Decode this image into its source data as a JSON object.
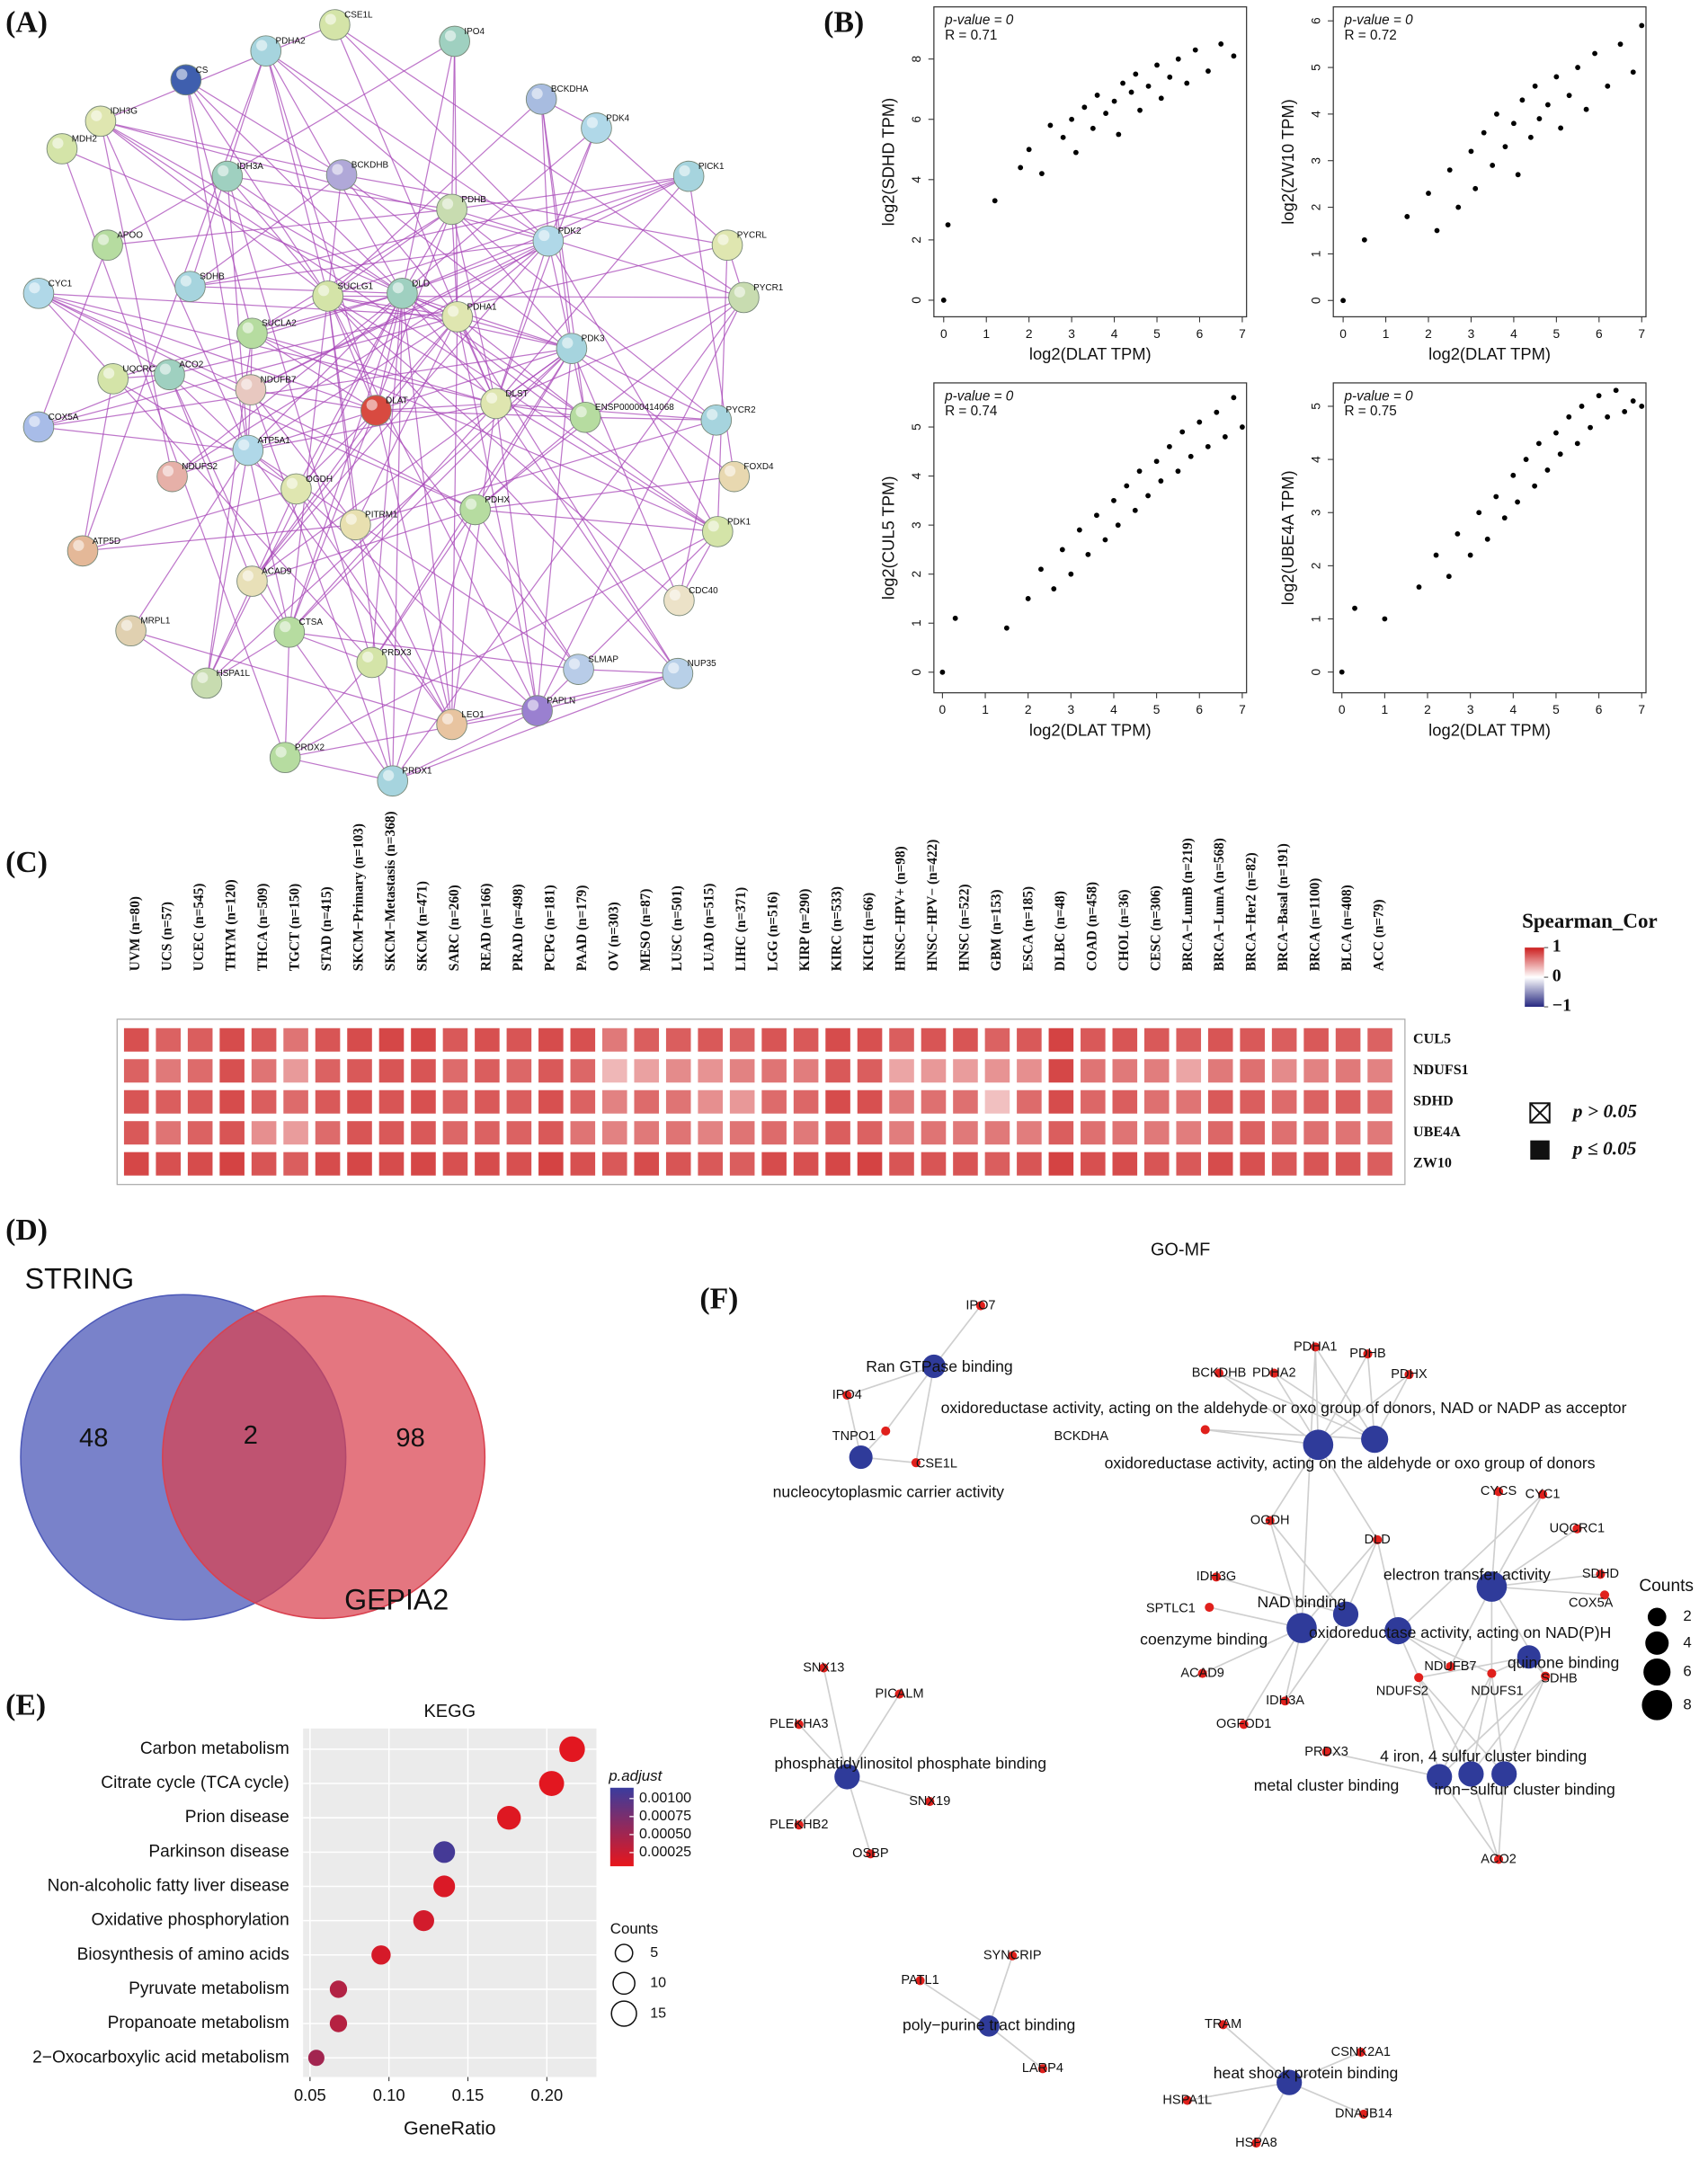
{
  "chart_data": [
    {
      "type": "network",
      "label": "(A)",
      "edge_color": "#a848b8",
      "nodes": [
        "CS",
        "PDHA2",
        "CSE1L",
        "IPO4",
        "BCKDHA",
        "PDK4",
        "IDH3G",
        "BCKDHB",
        "PICK1",
        "MDH2",
        "IDH3A",
        "PDHB",
        "PDK2",
        "PYCRL",
        "APOO",
        "SDHB",
        "SUCLG1",
        "DLD",
        "PYCR1",
        "CYC1",
        "PDHA1",
        "SUCLA2",
        "PDK3",
        "UQCRC1",
        "ACO2",
        "NDUFB7",
        "DLAT",
        "DLST",
        "ENSP00000414068",
        "PYCR2",
        "COX5A",
        "FOXD4",
        "NDUFS2",
        "ATP5A1",
        "OGDH",
        "PDHX",
        "PITRM1",
        "PDK1",
        "ATP5D",
        "ACAD9",
        "CDC40",
        "MRPL1",
        "CTSA",
        "NUP35",
        "PRDX3",
        "SLMAP",
        "HSPA1L",
        "PAPLN",
        "LEO1",
        "PRDX2",
        "PRDX1"
      ]
    },
    {
      "type": "scatter",
      "label": "(B)",
      "annotations": [
        "p-value = 0",
        "R = 0.71"
      ],
      "xlabel": "log2(DLAT TPM)",
      "ylabel": "log2(SDHD TPM)",
      "color": "#000000",
      "x": [
        0,
        0.1,
        1.2,
        1.8,
        2.0,
        2.3,
        2.5,
        2.8,
        3.0,
        3.1,
        3.3,
        3.5,
        3.6,
        3.8,
        4.0,
        4.1,
        4.2,
        4.4,
        4.5,
        4.6,
        4.8,
        5.0,
        5.1,
        5.3,
        5.5,
        5.7,
        5.9,
        6.2,
        6.5,
        6.8
      ],
      "y": [
        0,
        2.5,
        3.3,
        4.4,
        5.0,
        4.2,
        5.8,
        5.4,
        6.0,
        4.9,
        6.4,
        5.7,
        6.8,
        6.2,
        6.6,
        5.5,
        7.2,
        6.9,
        7.5,
        6.3,
        7.1,
        7.8,
        6.7,
        7.4,
        8.0,
        7.2,
        8.3,
        7.6,
        8.5,
        8.1
      ],
      "xlim": [
        -0.23,
        7.1
      ],
      "ylim": [
        -0.55,
        9.73
      ],
      "xticks": [
        0,
        1,
        2,
        3,
        4,
        5,
        6,
        7
      ],
      "yticks": [
        0,
        2,
        4,
        6,
        8
      ]
    },
    {
      "type": "scatter",
      "annotations": [
        "p-value = 0",
        "R = 0.72"
      ],
      "xlabel": "log2(DLAT TPM)",
      "ylabel": "log2(ZW10 TPM)",
      "color": "#000000",
      "x": [
        0,
        0.5,
        1.5,
        2.0,
        2.2,
        2.5,
        2.7,
        3.0,
        3.1,
        3.3,
        3.5,
        3.6,
        3.8,
        4.0,
        4.1,
        4.2,
        4.4,
        4.5,
        4.6,
        4.8,
        5.0,
        5.1,
        5.3,
        5.5,
        5.7,
        5.9,
        6.2,
        6.5,
        6.8,
        7.0
      ],
      "y": [
        0,
        1.3,
        1.8,
        2.3,
        1.5,
        2.8,
        2.0,
        3.2,
        2.4,
        3.6,
        2.9,
        4.0,
        3.3,
        3.8,
        2.7,
        4.3,
        3.5,
        4.6,
        3.9,
        4.2,
        4.8,
        3.7,
        4.4,
        5.0,
        4.1,
        5.3,
        4.6,
        5.5,
        4.9,
        5.9
      ],
      "xlim": [
        -0.23,
        7.1
      ],
      "ylim": [
        -0.35,
        6.3
      ],
      "xticks": [
        0,
        1,
        2,
        3,
        4,
        5,
        6,
        7
      ],
      "yticks": [
        0,
        1,
        2,
        3,
        4,
        5,
        6
      ]
    },
    {
      "type": "scatter",
      "annotations": [
        "p-value = 0",
        "R = 0.74"
      ],
      "xlabel": "log2(DLAT TPM)",
      "ylabel": "log2(CUL5 TPM)",
      "color": "#000000",
      "x": [
        0,
        0.3,
        1.5,
        2.0,
        2.3,
        2.6,
        2.8,
        3.0,
        3.2,
        3.4,
        3.6,
        3.8,
        4.0,
        4.1,
        4.3,
        4.5,
        4.6,
        4.8,
        5.0,
        5.1,
        5.3,
        5.5,
        5.6,
        5.8,
        6.0,
        6.2,
        6.4,
        6.6,
        6.8,
        7.0
      ],
      "y": [
        0,
        1.1,
        0.9,
        1.5,
        2.1,
        1.7,
        2.5,
        2.0,
        2.9,
        2.4,
        3.2,
        2.7,
        3.5,
        3.0,
        3.8,
        3.3,
        4.1,
        3.6,
        4.3,
        3.9,
        4.6,
        4.1,
        4.9,
        4.4,
        5.1,
        4.6,
        5.3,
        4.8,
        5.6,
        5.0
      ],
      "xlim": [
        -0.2,
        7.1
      ],
      "ylim": [
        -0.42,
        5.9
      ],
      "xticks": [
        0,
        1,
        2,
        3,
        4,
        5,
        6,
        7
      ],
      "yticks": [
        0,
        1,
        2,
        3,
        4,
        5
      ]
    },
    {
      "type": "scatter",
      "annotations": [
        "p-value = 0",
        "R = 0.75"
      ],
      "xlabel": "log2(DLAT TPM)",
      "ylabel": "log2(UBE4A TPM)",
      "color": "#000000",
      "x": [
        0,
        0.3,
        1.0,
        1.8,
        2.2,
        2.5,
        2.7,
        3.0,
        3.2,
        3.4,
        3.6,
        3.8,
        4.0,
        4.1,
        4.3,
        4.5,
        4.6,
        4.8,
        5.0,
        5.1,
        5.3,
        5.5,
        5.6,
        5.8,
        6.0,
        6.2,
        6.4,
        6.6,
        6.8,
        7.0
      ],
      "y": [
        0,
        1.2,
        1.0,
        1.6,
        2.2,
        1.8,
        2.6,
        2.2,
        3.0,
        2.5,
        3.3,
        2.9,
        3.7,
        3.2,
        4.0,
        3.5,
        4.3,
        3.8,
        4.5,
        4.1,
        4.8,
        4.3,
        5.0,
        4.6,
        5.2,
        4.8,
        5.3,
        4.9,
        5.1,
        5.0
      ],
      "xlim": [
        -0.2,
        7.1
      ],
      "ylim": [
        -0.39,
        5.44
      ],
      "xticks": [
        0,
        1,
        2,
        3,
        4,
        5,
        6,
        7
      ],
      "yticks": [
        0,
        1,
        2,
        3,
        4,
        5
      ]
    },
    {
      "type": "heatmap",
      "label": "(C)",
      "legend_title": "Spearman_Cor",
      "clim": [
        -1,
        1
      ],
      "cticks": [
        1,
        0,
        {
          "value": -1,
          "label": "−1"
        }
      ],
      "sig_legend": [
        "p > 0.05",
        "p ≤ 0.05"
      ],
      "columns": [
        "UVM (n=80)",
        "UCS (n=57)",
        "UCEC (n=545)",
        "THYM (n=120)",
        "THCA (n=509)",
        "TGCT (n=150)",
        "STAD (n=415)",
        "SKCM−Primary (n=103)",
        "SKCM−Metastasis (n=368)",
        "SKCM (n=471)",
        "SARC (n=260)",
        "READ (n=166)",
        "PRAD (n=498)",
        "PCPG (n=181)",
        "PAAD (n=179)",
        "OV (n=303)",
        "MESO (n=87)",
        "LUSC (n=501)",
        "LUAD (n=515)",
        "LIHC (n=371)",
        "LGG (n=516)",
        "KIRP (n=290)",
        "KIRC (n=533)",
        "KICH (n=66)",
        "HNSC−HPV+ (n=98)",
        "HNSC−HPV− (n=422)",
        "HNSC (n=522)",
        "GBM (n=153)",
        "ESCA (n=185)",
        "DLBC (n=48)",
        "COAD (n=458)",
        "CHOL (n=36)",
        "CESC (n=306)",
        "BRCA−LumB (n=219)",
        "BRCA−LumA (n=568)",
        "BRCA−Her2 (n=82)",
        "BRCA−Basal (n=191)",
        "BRCA (n=1100)",
        "BLCA (n=408)",
        "ACC (n=79)"
      ],
      "rows": [
        "CUL5",
        "NDUFS1",
        "SDHD",
        "UBE4A",
        "ZW10"
      ],
      "values": [
        [
          0.78,
          0.7,
          0.72,
          0.8,
          0.74,
          0.62,
          0.76,
          0.8,
          0.82,
          0.82,
          0.74,
          0.78,
          0.76,
          0.8,
          0.78,
          0.6,
          0.72,
          0.72,
          0.74,
          0.7,
          0.76,
          0.74,
          0.8,
          0.78,
          0.72,
          0.76,
          0.76,
          0.7,
          0.74,
          0.84,
          0.74,
          0.76,
          0.74,
          0.72,
          0.76,
          0.74,
          0.72,
          0.74,
          0.72,
          0.7
        ],
        [
          0.7,
          0.6,
          0.66,
          0.78,
          0.62,
          0.45,
          0.7,
          0.74,
          0.76,
          0.76,
          0.66,
          0.72,
          0.68,
          0.74,
          0.68,
          0.32,
          0.42,
          0.52,
          0.48,
          0.56,
          0.62,
          0.58,
          0.74,
          0.72,
          0.4,
          0.46,
          0.44,
          0.48,
          0.5,
          0.82,
          0.62,
          0.6,
          0.58,
          0.4,
          0.6,
          0.64,
          0.52,
          0.56,
          0.6,
          0.56
        ],
        [
          0.76,
          0.72,
          0.74,
          0.8,
          0.72,
          0.66,
          0.74,
          0.78,
          0.76,
          0.78,
          0.7,
          0.74,
          0.72,
          0.78,
          0.7,
          0.56,
          0.66,
          0.62,
          0.5,
          0.46,
          0.66,
          0.68,
          0.8,
          0.78,
          0.6,
          0.64,
          0.64,
          0.28,
          0.66,
          0.8,
          0.68,
          0.72,
          0.64,
          0.62,
          0.74,
          0.72,
          0.66,
          0.7,
          0.72,
          0.66
        ],
        [
          0.74,
          0.62,
          0.7,
          0.76,
          0.5,
          0.44,
          0.66,
          0.76,
          0.74,
          0.74,
          0.68,
          0.7,
          0.7,
          0.74,
          0.62,
          0.56,
          0.6,
          0.62,
          0.56,
          0.62,
          0.66,
          0.6,
          0.72,
          0.7,
          0.58,
          0.62,
          0.6,
          0.6,
          0.58,
          0.72,
          0.64,
          0.62,
          0.6,
          0.58,
          0.68,
          0.7,
          0.64,
          0.64,
          0.62,
          0.6
        ],
        [
          0.82,
          0.78,
          0.8,
          0.84,
          0.76,
          0.72,
          0.8,
          0.82,
          0.8,
          0.82,
          0.78,
          0.8,
          0.78,
          0.84,
          0.78,
          0.74,
          0.8,
          0.76,
          0.74,
          0.72,
          0.8,
          0.78,
          0.82,
          0.84,
          0.76,
          0.76,
          0.76,
          0.72,
          0.76,
          0.84,
          0.78,
          0.8,
          0.76,
          0.74,
          0.8,
          0.78,
          0.74,
          0.76,
          0.76,
          0.72
        ]
      ]
    },
    {
      "type": "venn",
      "label": "(D)",
      "sets": [
        "STRING",
        "GEPIA2"
      ],
      "values": [
        48,
        2,
        98
      ],
      "colors": [
        "#4c58b8",
        "#d9414f"
      ]
    },
    {
      "type": "dot",
      "label": "(E)",
      "title": "KEGG",
      "categories": [
        "Carbon metabolism",
        "Citrate cycle (TCA cycle)",
        "Prion disease",
        "Parkinson disease",
        "Non-alcoholic fatty liver disease",
        "Oxidative phosphorylation",
        "Biosynthesis of amino acids",
        "Pyruvate metabolism",
        "Propanoate metabolism",
        "2−Oxocarboxylic acid metabolism"
      ],
      "x": [
        0.216,
        0.203,
        0.176,
        0.135,
        0.135,
        0.122,
        0.095,
        0.068,
        0.068,
        0.054
      ],
      "counts": [
        16,
        15,
        13,
        10,
        10,
        9,
        7,
        5,
        5,
        4
      ],
      "p_adjust": [
        0.0001,
        0.0001,
        0.00012,
        0.00108,
        0.00015,
        0.0002,
        0.00018,
        0.0004,
        0.00038,
        0.0005
      ],
      "xlim": [
        0.0456,
        0.2314
      ],
      "xticks": [
        0.05,
        {
          "value": 0.1,
          "label": "0.10"
        },
        0.15,
        {
          "value": 0.2,
          "label": "0.20"
        }
      ],
      "xlabel": "GeneRatio",
      "color_title": "p.adjust",
      "clim": [
        6e-05,
        0.00115
      ],
      "cticks": [
        {
          "value": 0.001,
          "label": "0.00100"
        },
        {
          "value": 0.00075,
          "label": "0.00075"
        },
        {
          "value": 0.0005,
          "label": "0.00050"
        },
        {
          "value": 0.00025,
          "label": "0.00025"
        }
      ],
      "colors": [
        "#e8161b",
        "#3a3c9e"
      ],
      "size_title": "Counts",
      "size_ticks": [
        5,
        10,
        15
      ]
    },
    {
      "type": "enrichment_network",
      "label": "(F)",
      "title": "GO-MF",
      "term_color": "#2f3b9a",
      "gene_color": "#e0201c",
      "terms": [
        "Ran GTPase binding",
        "nucleocytoplasmic carrier activity",
        "oxidoreductase activity, acting on the aldehyde or oxo group of donors, NAD or NADP as acceptor",
        "oxidoreductase activity, acting on the aldehyde or oxo group of donors",
        "electron transfer activity",
        "NAD binding",
        "coenzyme binding",
        "oxidoreductase activity, acting on NAD(P)H",
        "quinone binding",
        "phosphatidylinositol phosphate binding",
        "4 iron, 4 sulfur cluster binding",
        "metal cluster binding",
        "iron−sulfur cluster binding",
        "poly−purine tract binding",
        "heat shock protein binding"
      ],
      "term_counts": [
        4,
        4,
        6,
        8,
        8,
        5,
        8,
        6,
        4,
        5,
        5,
        5,
        5,
        3,
        5
      ],
      "genes": [
        "IPO7",
        "IPO4",
        "TNPO1",
        "CSE1L",
        "BCKDHB",
        "PDHA1",
        "PDHA2",
        "PDHB",
        "PDHX",
        "BCKDHA",
        "OGDH",
        "DLD",
        "CYCS",
        "CYC1",
        "UQCRC1",
        "SDHD",
        "COX5A",
        "IDH3G",
        "SPTLC1",
        "ACAD9",
        "IDH3A",
        "OGFOD1",
        "NDUFB7",
        "NDUFS1",
        "NDUFS2",
        "SDHB",
        "PRDX3",
        "ACO2",
        "SNX13",
        "PICALM",
        "PLEKHA3",
        "SNX19",
        "PLEKHB2",
        "OSBP",
        "SYNCRIP",
        "PATL1",
        "LARP4",
        "TRAM",
        "CSNK2A1",
        "HSPA1L",
        "DNAJB14",
        "HSPA8"
      ],
      "size_title": "Counts",
      "size_ticks": [
        2,
        4,
        6,
        8
      ]
    }
  ]
}
